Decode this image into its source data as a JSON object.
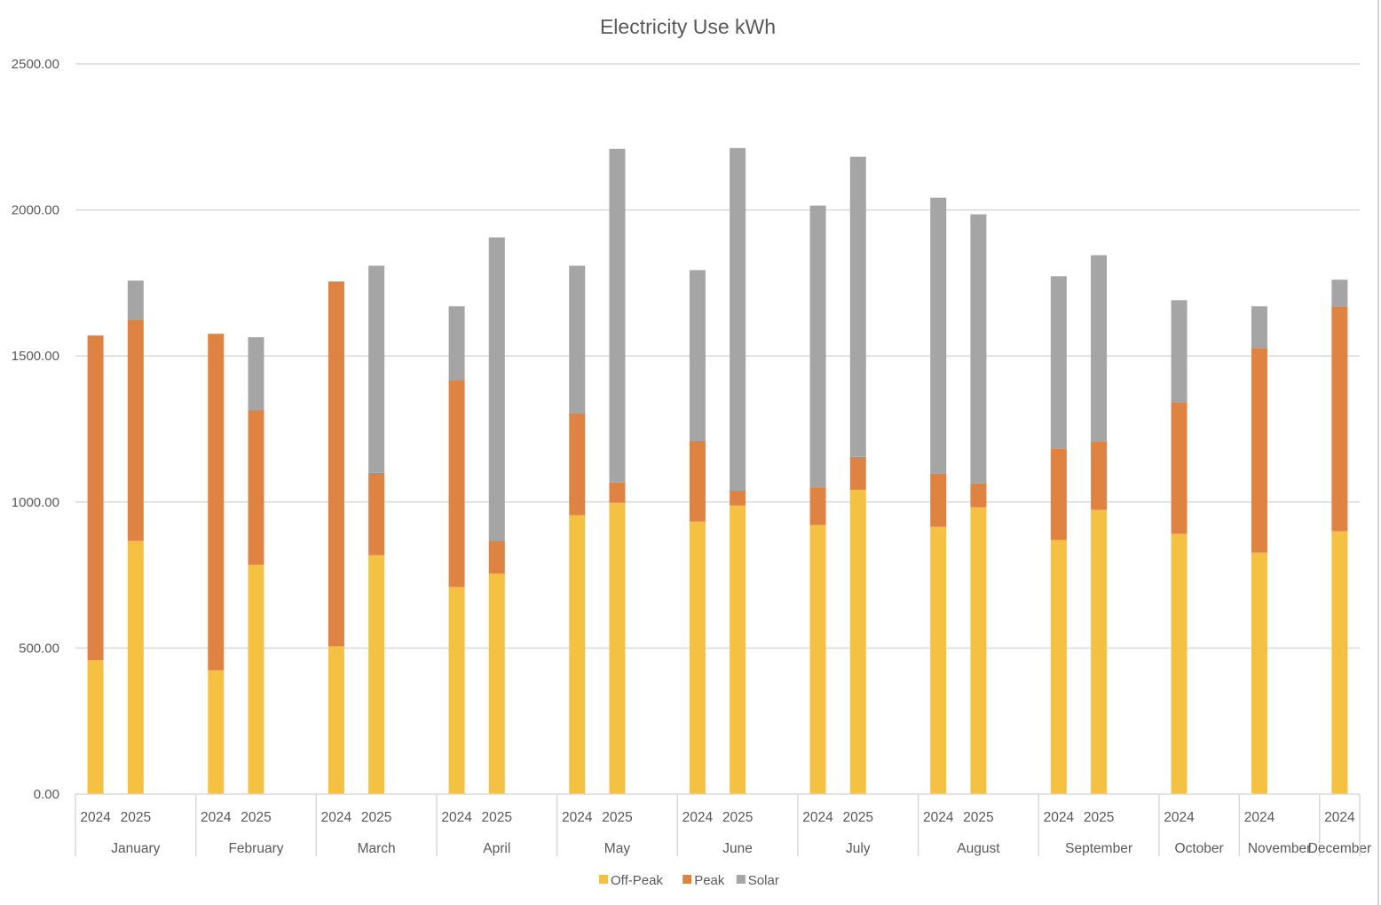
{
  "chart_data": {
    "type": "bar",
    "stacked": true,
    "title": "Electricity Use kWh",
    "xlabel": "",
    "ylabel": "",
    "ylim": [
      0,
      2500
    ],
    "ytick_step": 500,
    "ytick_format": "2 decimals",
    "y_ticks": [
      "0.00",
      "500.00",
      "1000.00",
      "1500.00",
      "2000.00",
      "2500.00"
    ],
    "grid": true,
    "legend_position": "bottom",
    "colors": {
      "Off-Peak": "#f4c142",
      "Peak": "#de8342",
      "Solar": "#a5a5a5"
    },
    "groups": [
      {
        "month": "January",
        "years": [
          "2024",
          "2025"
        ],
        "slots": 3
      },
      {
        "month": "February",
        "years": [
          "2024",
          "2025"
        ],
        "slots": 3
      },
      {
        "month": "March",
        "years": [
          "2024",
          "2025"
        ],
        "slots": 3
      },
      {
        "month": "April",
        "years": [
          "2024",
          "2025"
        ],
        "slots": 3
      },
      {
        "month": "May",
        "years": [
          "2024",
          "2025"
        ],
        "slots": 3
      },
      {
        "month": "June",
        "years": [
          "2024",
          "2025"
        ],
        "slots": 3
      },
      {
        "month": "July",
        "years": [
          "2024",
          "2025"
        ],
        "slots": 3
      },
      {
        "month": "August",
        "years": [
          "2024",
          "2025"
        ],
        "slots": 3
      },
      {
        "month": "September",
        "years": [
          "2024",
          "2025"
        ],
        "slots": 3
      },
      {
        "month": "October",
        "years": [
          "2024"
        ],
        "slots": 2
      },
      {
        "month": "November",
        "years": [
          "2024"
        ],
        "slots": 2
      },
      {
        "month": "December",
        "years": [
          "2024"
        ],
        "slots": 1
      }
    ],
    "categories": [
      "January 2024",
      "January 2025",
      "February 2024",
      "February 2025",
      "March 2024",
      "March 2025",
      "April 2024",
      "April 2025",
      "May 2024",
      "May 2025",
      "June 2024",
      "June 2025",
      "July 2024",
      "July 2025",
      "August 2024",
      "August 2025",
      "September 2024",
      "September 2025",
      "October 2024",
      "November 2024",
      "December 2024"
    ],
    "series": [
      {
        "name": "Off-Peak",
        "values": [
          458,
          867,
          424,
          785,
          506,
          818,
          709,
          755,
          955,
          997,
          933,
          988,
          921,
          1042,
          915,
          982,
          870,
          973,
          891,
          827,
          900
        ]
      },
      {
        "name": "Peak",
        "values": [
          1112,
          757,
          1152,
          530,
          1249,
          282,
          709,
          112,
          348,
          70,
          276,
          51,
          127,
          113,
          182,
          82,
          312,
          233,
          451,
          700,
          770
        ]
      },
      {
        "name": "Solar",
        "values": [
          0,
          134,
          0,
          249,
          0,
          709,
          252,
          1039,
          506,
          1142,
          585,
          1173,
          967,
          1027,
          945,
          921,
          591,
          639,
          349,
          143,
          91
        ]
      }
    ]
  },
  "legend": {
    "items": [
      {
        "label": "Off-Peak",
        "color": "#f4c142"
      },
      {
        "label": "Peak",
        "color": "#de8342"
      },
      {
        "label": "Solar",
        "color": "#a5a5a5"
      }
    ]
  }
}
